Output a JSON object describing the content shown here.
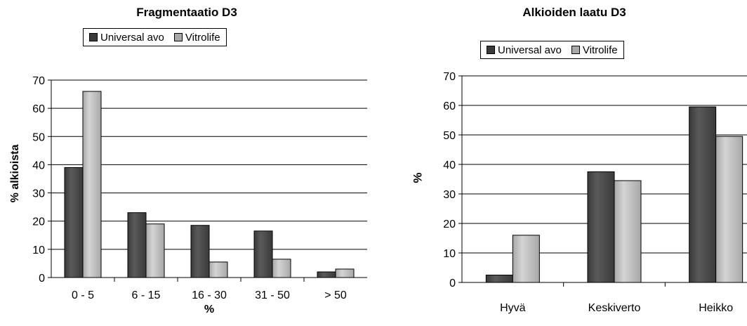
{
  "colors": {
    "universal": "#3a3a3a",
    "vitrolife": "#a8a8a8",
    "axis": "#000000"
  },
  "chart_data": [
    {
      "type": "bar",
      "title": "Fragmentaatio D3",
      "categories": [
        "0 - 5",
        "6 - 15",
        "16 - 30",
        "31 - 50",
        "> 50"
      ],
      "series": [
        {
          "name": "Universal avo",
          "values": [
            39,
            23,
            18.5,
            16.5,
            2
          ]
        },
        {
          "name": "Vitrolife",
          "values": [
            66,
            19,
            5.5,
            6.5,
            3
          ]
        }
      ],
      "xlabel": "%",
      "ylabel": "% alkioista",
      "ylim": [
        0,
        70
      ],
      "yticks": [
        0,
        10,
        20,
        30,
        40,
        50,
        60,
        70
      ],
      "grid": true,
      "legend": "top"
    },
    {
      "type": "bar",
      "title": "Alkioiden laatu D3",
      "categories": [
        "Hyvä",
        "Keskiverto",
        "Heikko"
      ],
      "series": [
        {
          "name": "Universal avo",
          "values": [
            2.5,
            37.5,
            59.5
          ]
        },
        {
          "name": "Vitrolife",
          "values": [
            16,
            34.5,
            49.5
          ]
        }
      ],
      "xlabel": "",
      "ylabel": "%",
      "ylim": [
        0,
        70
      ],
      "yticks": [
        0,
        10,
        20,
        30,
        40,
        50,
        60,
        70
      ],
      "grid": true,
      "legend": "top"
    }
  ]
}
